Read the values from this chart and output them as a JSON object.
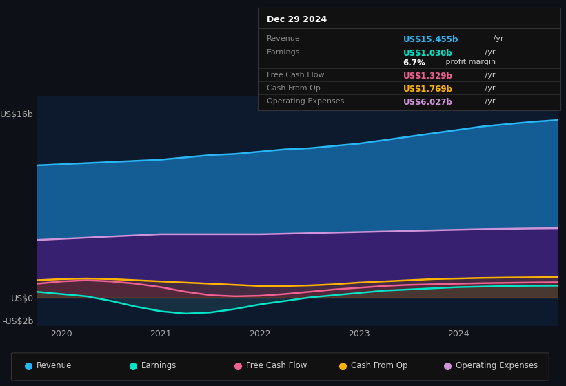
{
  "bg_color": "#0d1117",
  "plot_bg_color": "#0d1a2e",
  "years": [
    2019.75,
    2020.0,
    2020.25,
    2020.5,
    2020.75,
    2021.0,
    2021.25,
    2021.5,
    2021.75,
    2022.0,
    2022.25,
    2022.5,
    2022.75,
    2023.0,
    2023.25,
    2023.5,
    2023.75,
    2024.0,
    2024.25,
    2024.5,
    2024.75,
    2025.0
  ],
  "revenue": [
    11.5,
    11.6,
    11.7,
    11.8,
    11.9,
    12.0,
    12.2,
    12.4,
    12.5,
    12.7,
    12.9,
    13.0,
    13.2,
    13.4,
    13.7,
    14.0,
    14.3,
    14.6,
    14.9,
    15.1,
    15.3,
    15.455
  ],
  "earnings": [
    0.5,
    0.3,
    0.1,
    -0.3,
    -0.8,
    -1.2,
    -1.4,
    -1.3,
    -1.0,
    -0.6,
    -0.3,
    0.0,
    0.2,
    0.4,
    0.6,
    0.7,
    0.8,
    0.9,
    0.95,
    1.0,
    1.02,
    1.03
  ],
  "free_cash_flow": [
    1.2,
    1.4,
    1.5,
    1.4,
    1.2,
    0.9,
    0.5,
    0.2,
    0.1,
    0.15,
    0.3,
    0.5,
    0.7,
    0.85,
    1.0,
    1.1,
    1.15,
    1.2,
    1.25,
    1.28,
    1.31,
    1.329
  ],
  "cash_from_op": [
    1.5,
    1.6,
    1.65,
    1.6,
    1.5,
    1.4,
    1.3,
    1.2,
    1.1,
    1.0,
    1.0,
    1.05,
    1.15,
    1.3,
    1.4,
    1.5,
    1.6,
    1.65,
    1.7,
    1.73,
    1.75,
    1.769
  ],
  "operating_expenses": [
    5.0,
    5.1,
    5.2,
    5.3,
    5.4,
    5.5,
    5.5,
    5.5,
    5.5,
    5.5,
    5.55,
    5.6,
    5.65,
    5.7,
    5.75,
    5.8,
    5.85,
    5.9,
    5.95,
    5.98,
    6.01,
    6.027
  ],
  "revenue_color": "#29b6f6",
  "earnings_color": "#00e5c8",
  "free_cash_flow_color": "#f06292",
  "cash_from_op_color": "#ffb300",
  "operating_expenses_color": "#ce93d8",
  "revenue_fill": "#1565a0",
  "ylim_min": -2.5,
  "ylim_max": 17.5,
  "xtick_labels": [
    "2020",
    "2021",
    "2022",
    "2023",
    "2024"
  ],
  "xtick_positions": [
    2020,
    2021,
    2022,
    2023,
    2024
  ],
  "info_title": "Dec 29 2024",
  "info_rows": [
    {
      "label": "Revenue",
      "value": "US$15.455b",
      "unit": " /yr",
      "value_color": "#29b6f6"
    },
    {
      "label": "Earnings",
      "value": "US$1.030b",
      "unit": " /yr",
      "value_color": "#00e5c8"
    },
    {
      "label": "",
      "value": "6.7%",
      "unit": " profit margin",
      "value_color": "#ffffff"
    },
    {
      "label": "Free Cash Flow",
      "value": "US$1.329b",
      "unit": " /yr",
      "value_color": "#f06292"
    },
    {
      "label": "Cash From Op",
      "value": "US$1.769b",
      "unit": " /yr",
      "value_color": "#ffb300"
    },
    {
      "label": "Operating Expenses",
      "value": "US$6.027b",
      "unit": " /yr",
      "value_color": "#ce93d8"
    }
  ],
  "legend_items": [
    {
      "label": "Revenue",
      "color": "#29b6f6"
    },
    {
      "label": "Earnings",
      "color": "#00e5c8"
    },
    {
      "label": "Free Cash Flow",
      "color": "#f06292"
    },
    {
      "label": "Cash From Op",
      "color": "#ffb300"
    },
    {
      "label": "Operating Expenses",
      "color": "#ce93d8"
    }
  ]
}
